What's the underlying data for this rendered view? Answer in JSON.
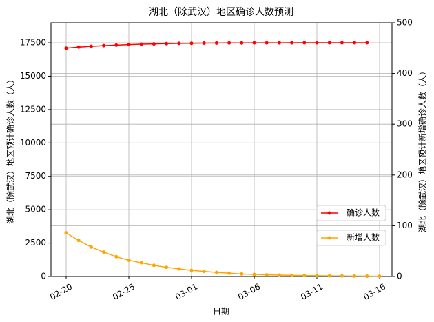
{
  "chart_data": {
    "type": "line",
    "title": "湖北（除武汉）地区确诊人数预测",
    "xlabel": "日期",
    "ylabel": "湖北（除武汉）地区预计确诊人数（人）",
    "y2label": "湖北（除武汉）地区预计新增确诊人数（人）",
    "x": [
      "02-20",
      "02-21",
      "02-22",
      "02-23",
      "02-24",
      "02-25",
      "02-26",
      "02-27",
      "02-28",
      "02-29",
      "03-01",
      "03-02",
      "03-03",
      "03-04",
      "03-05",
      "03-06",
      "03-07",
      "03-08",
      "03-09",
      "03-10",
      "03-11",
      "03-12",
      "03-13",
      "03-14",
      "03-15",
      "03-16"
    ],
    "xticks": [
      "02-20",
      "02-25",
      "03-01",
      "03-06",
      "03-11",
      "03-16"
    ],
    "ylim": [
      0,
      19000
    ],
    "yticks": [
      0,
      2500,
      5000,
      7500,
      10000,
      12500,
      15000,
      17500
    ],
    "y2lim": [
      0,
      500
    ],
    "y2ticks": [
      0,
      100,
      200,
      300,
      400,
      500
    ],
    "grid": true,
    "series": [
      {
        "name": "确诊人数",
        "color": "#ff0000",
        "values": [
          17100,
          17180,
          17240,
          17290,
          17330,
          17370,
          17400,
          17420,
          17440,
          17455,
          17465,
          17475,
          17482,
          17488,
          17492,
          17495,
          17497,
          17499,
          17500,
          17501,
          17502,
          17503,
          17503,
          17504,
          17504,
          null
        ]
      },
      {
        "name": "新增人数",
        "color": "#ffa500",
        "axis": "y2",
        "values": [
          86,
          71,
          58,
          48,
          39,
          32,
          27,
          22,
          18,
          15,
          12,
          10,
          8,
          6.5,
          5,
          4,
          3.3,
          2.7,
          2.2,
          1.8,
          1.5,
          1.2,
          1,
          0.8,
          0.6,
          0.5
        ]
      }
    ]
  }
}
